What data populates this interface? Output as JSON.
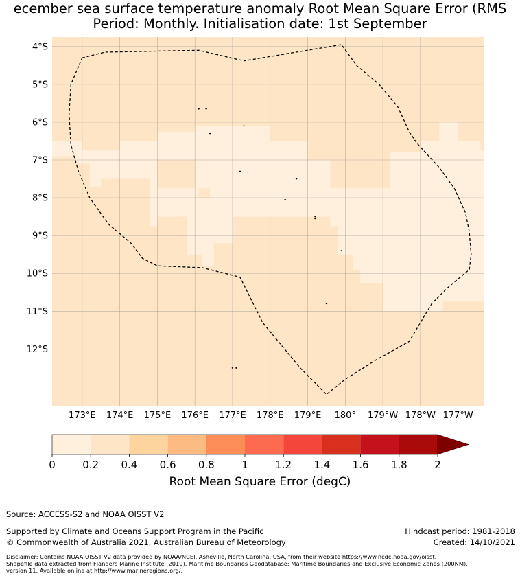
{
  "header": {
    "title_line1": "ecember sea surface temperature anomaly Root Mean Square Error (RMS",
    "title_line2": "Period: Monthly. Initialisation date: 1st September"
  },
  "map": {
    "lon_range": [
      172.2,
      183.7
    ],
    "lat_range": [
      -13.5,
      -3.75
    ],
    "lat_ticks": [
      {
        "value": -4,
        "label": "4°S"
      },
      {
        "value": -5,
        "label": "5°S"
      },
      {
        "value": -6,
        "label": "6°S"
      },
      {
        "value": -7,
        "label": "7°S"
      },
      {
        "value": -8,
        "label": "8°S"
      },
      {
        "value": -9,
        "label": "9°S"
      },
      {
        "value": -10,
        "label": "10°S"
      },
      {
        "value": -11,
        "label": "11°S"
      },
      {
        "value": -12,
        "label": "12°S"
      }
    ],
    "lon_ticks": [
      {
        "value": 173,
        "label": "173°E"
      },
      {
        "value": 174,
        "label": "174°E"
      },
      {
        "value": 175,
        "label": "175°E"
      },
      {
        "value": 176,
        "label": "176°E"
      },
      {
        "value": 177,
        "label": "177°E"
      },
      {
        "value": 178,
        "label": "178°E"
      },
      {
        "value": 179,
        "label": "179°E"
      },
      {
        "value": 180,
        "label": "180°"
      },
      {
        "value": 181,
        "label": "179°W"
      },
      {
        "value": 182,
        "label": "178°W"
      },
      {
        "value": 183,
        "label": "177°W"
      }
    ],
    "background_color": "#fde5c6",
    "low_error_color": "#fff0dd",
    "low_error_regions": [
      [
        [
          172.0,
          -6.5
        ],
        [
          173.0,
          -6.5
        ],
        [
          173.0,
          -6.75
        ],
        [
          174.0,
          -6.75
        ],
        [
          174.0,
          -6.5
        ],
        [
          175.0,
          -6.5
        ],
        [
          175.0,
          -6.25
        ],
        [
          176.0,
          -6.25
        ],
        [
          176.0,
          -6.1
        ],
        [
          178.0,
          -6.1
        ],
        [
          178.0,
          -6.5
        ],
        [
          179.0,
          -6.5
        ],
        [
          179.0,
          -7.0
        ],
        [
          181.2,
          -7.0
        ],
        [
          181.2,
          -6.8
        ],
        [
          182.0,
          -6.8
        ],
        [
          182.0,
          -6.5
        ],
        [
          182.5,
          -6.5
        ],
        [
          182.5,
          -6.0
        ],
        [
          183.0,
          -6.0
        ],
        [
          183.0,
          -6.5
        ],
        [
          183.6,
          -6.5
        ],
        [
          183.6,
          -6.75
        ],
        [
          183.7,
          -6.75
        ],
        [
          183.7,
          -10.75
        ],
        [
          182.6,
          -10.75
        ],
        [
          182.6,
          -11.0
        ],
        [
          181.0,
          -11.0
        ],
        [
          181.0,
          -10.25
        ],
        [
          180.4,
          -10.25
        ],
        [
          180.4,
          -9.9
        ],
        [
          180.2,
          -9.9
        ],
        [
          180.2,
          -9.5
        ],
        [
          179.8,
          -9.5
        ],
        [
          179.8,
          -8.75
        ],
        [
          179.6,
          -8.75
        ],
        [
          179.6,
          -8.5
        ],
        [
          177.0,
          -8.5
        ],
        [
          177.0,
          -9.2
        ],
        [
          176.5,
          -9.2
        ],
        [
          176.5,
          -9.8
        ],
        [
          176.2,
          -9.8
        ],
        [
          176.2,
          -9.5
        ],
        [
          175.8,
          -9.5
        ],
        [
          175.8,
          -8.5
        ],
        [
          175.0,
          -8.5
        ],
        [
          175.0,
          -8.75
        ],
        [
          174.8,
          -8.75
        ],
        [
          174.8,
          -7.5
        ],
        [
          173.5,
          -7.5
        ],
        [
          173.5,
          -7.7
        ],
        [
          173.2,
          -7.7
        ],
        [
          173.2,
          -7.1
        ],
        [
          172.8,
          -7.1
        ],
        [
          172.8,
          -6.9
        ],
        [
          172.0,
          -6.9
        ]
      ]
    ],
    "darker_patches": [
      [
        [
          179.6,
          -7.0
        ],
        [
          181.2,
          -7.0
        ],
        [
          181.2,
          -7.75
        ],
        [
          179.6,
          -7.75
        ]
      ],
      [
        [
          175.0,
          -7.0
        ],
        [
          176.0,
          -7.0
        ],
        [
          176.0,
          -7.75
        ],
        [
          175.0,
          -7.75
        ]
      ],
      [
        [
          176.1,
          -7.75
        ],
        [
          176.4,
          -7.75
        ],
        [
          176.4,
          -8.0
        ],
        [
          176.1,
          -8.0
        ]
      ]
    ],
    "eez_boundary": [
      [
        173.0,
        -4.3
      ],
      [
        173.6,
        -4.15
      ],
      [
        176.1,
        -4.1
      ],
      [
        177.3,
        -4.38
      ],
      [
        179.9,
        -3.95
      ],
      [
        180.3,
        -4.5
      ],
      [
        180.9,
        -5.0
      ],
      [
        181.4,
        -5.6
      ],
      [
        181.7,
        -6.25
      ],
      [
        181.9,
        -6.55
      ],
      [
        182.5,
        -7.2
      ],
      [
        182.9,
        -7.75
      ],
      [
        183.2,
        -8.4
      ],
      [
        183.3,
        -8.9
      ],
      [
        183.35,
        -9.5
      ],
      [
        183.3,
        -9.9
      ],
      [
        182.7,
        -10.4
      ],
      [
        182.3,
        -10.8
      ],
      [
        182.0,
        -11.3
      ],
      [
        181.7,
        -11.8
      ],
      [
        180.8,
        -12.3
      ],
      [
        180.0,
        -12.8
      ],
      [
        179.5,
        -13.2
      ],
      [
        178.8,
        -12.5
      ],
      [
        177.8,
        -11.3
      ],
      [
        177.2,
        -10.1
      ],
      [
        176.2,
        -9.85
      ],
      [
        175.0,
        -9.8
      ],
      [
        174.6,
        -9.6
      ],
      [
        174.3,
        -9.2
      ],
      [
        173.7,
        -8.7
      ],
      [
        173.2,
        -8.0
      ],
      [
        172.9,
        -7.3
      ],
      [
        172.7,
        -6.6
      ],
      [
        172.65,
        -5.8
      ],
      [
        172.7,
        -5.0
      ],
      [
        173.0,
        -4.3
      ]
    ],
    "islands": [
      [
        176.1,
        -5.65
      ],
      [
        176.3,
        -5.65
      ],
      [
        177.3,
        -6.1
      ],
      [
        176.4,
        -6.3
      ],
      [
        177.2,
        -7.3
      ],
      [
        178.7,
        -7.5
      ],
      [
        178.4,
        -8.05
      ],
      [
        179.2,
        -8.5
      ],
      [
        179.2,
        -8.55
      ],
      [
        179.9,
        -9.4
      ],
      [
        179.5,
        -10.8
      ],
      [
        177.1,
        -12.5
      ],
      [
        177.0,
        -12.5
      ]
    ]
  },
  "colorbar": {
    "min": 0,
    "max": 2,
    "step": 0.2,
    "colors": [
      "#fff0dd",
      "#fde5c6",
      "#fdd49e",
      "#fdbb84",
      "#fc8d59",
      "#fc6b4f",
      "#f4463a",
      "#d7301f",
      "#c4111c",
      "#a90b0b"
    ],
    "extend_color": "#7f0000",
    "tick_labels": [
      "0",
      "0.2",
      "0.4",
      "0.6",
      "0.8",
      "1",
      "1.2",
      "1.4",
      "1.6",
      "1.8",
      "2"
    ],
    "title": "Root Mean Square Error (degC)"
  },
  "footer": {
    "source": "Source: ACCESS-S2 and NOAA OISST V2",
    "supported": "Supported by Climate and Oceans Support Program in the Pacific",
    "copyright": "© Commonwealth of Australia 2021, Australian Bureau of Meteorology",
    "hindcast": "Hindcast period: 1981-2018",
    "created": "Created: 14/10/2021",
    "disclaimer_line1": "Disclaimer: Contains NOAA OISST V2 data provided by NOAA/NCEI, Asheville, North Carolina, USA, from their website https://www.ncdc.noaa.gov/oisst.",
    "disclaimer_line2": "Shapefile data extracted from Flanders Marine Institute (2019), Maritime Boundaries Geodatabase: Maritime Boundaries and Exclusive Economic Zones (200NM),",
    "disclaimer_line3": "version 11. Available online at http://www.marineregions.org/."
  }
}
